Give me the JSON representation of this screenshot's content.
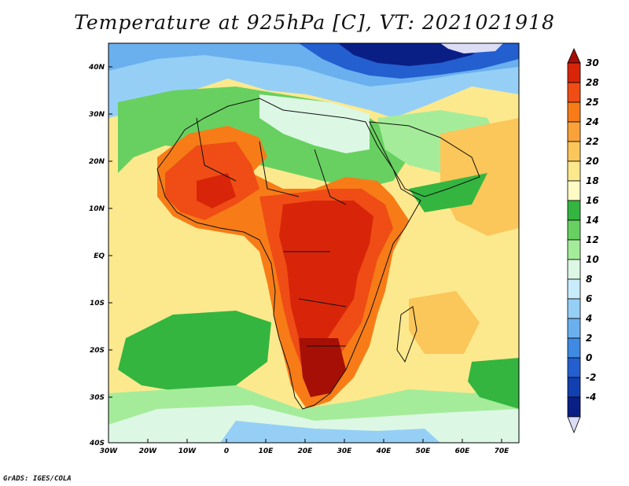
{
  "title": "Temperature at 925hPa [C], VT: 2021021918",
  "footer": "GrADS: IGES/COLA",
  "map": {
    "lon_labels": [
      "30W",
      "20W",
      "10W",
      "0",
      "10E",
      "20E",
      "30E",
      "40E",
      "50E",
      "60E",
      "70E"
    ],
    "lat_labels": [
      "40N",
      "30N",
      "20N",
      "10N",
      "EQ",
      "10S",
      "20S",
      "30S",
      "40S"
    ]
  },
  "colorbar": {
    "labels": [
      "30",
      "28",
      "25",
      "24",
      "22",
      "20",
      "18",
      "16",
      "14",
      "12",
      "10",
      "8",
      "6",
      "4",
      "2",
      "0",
      "-2",
      "-4"
    ],
    "colors": [
      "#a50f05",
      "#d8250a",
      "#ef4d15",
      "#f77c17",
      "#f9a23a",
      "#fbc65a",
      "#fde98d",
      "#fefcc4",
      "#34b540",
      "#68d060",
      "#a5ec9a",
      "#dcf8e4",
      "#c8ecfb",
      "#96cff6",
      "#6ab0ef",
      "#3f8ae3",
      "#245fd0",
      "#1240b0",
      "#0a1f86",
      "#dcdcf5"
    ]
  }
}
